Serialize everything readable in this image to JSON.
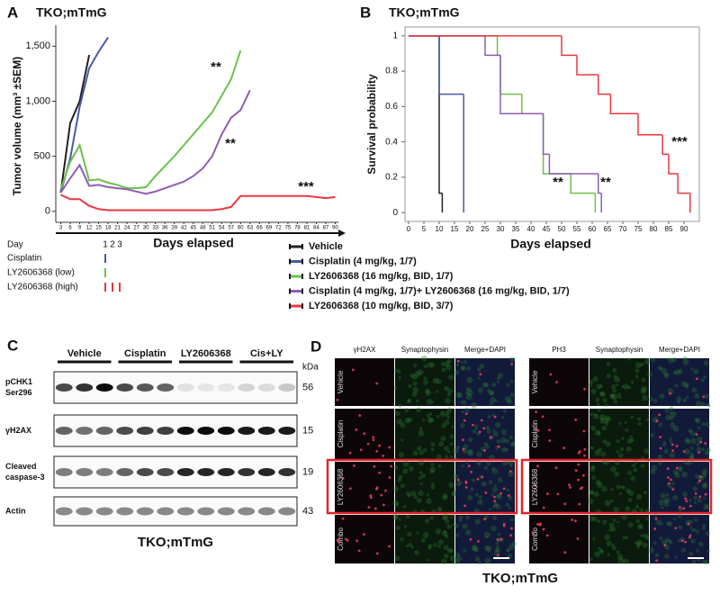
{
  "chart_data": [
    {
      "type": "line",
      "panel_label": "A",
      "title": "TKO;mTmG",
      "y_label": "Tumor volume (mm³ ±SEM)",
      "x_label": "Days elapsed",
      "xlim": [
        2,
        91
      ],
      "xticks": [
        3,
        6,
        9,
        12,
        15,
        18,
        21,
        24,
        27,
        30,
        33,
        36,
        39,
        42,
        45,
        48,
        51,
        54,
        57,
        60,
        63,
        66,
        69,
        72,
        75,
        78,
        81,
        84,
        87,
        90
      ],
      "ylim": [
        -100,
        1650
      ],
      "yticks": [
        0,
        500,
        {
          "value": 1000,
          "label": "1,000"
        },
        {
          "value": 1500,
          "label": "1,500"
        }
      ],
      "series": [
        {
          "name": "Vehicle",
          "color": "#222222",
          "x": [
            3,
            6,
            9,
            12
          ],
          "values": [
            170,
            800,
            1000,
            1420
          ]
        },
        {
          "name": "Cisplatin (4 mg/kg, 1/7)",
          "color": "#4a5aa8",
          "x": [
            3,
            6,
            9,
            12,
            15,
            18
          ],
          "values": [
            170,
            480,
            950,
            1300,
            1450,
            1580
          ]
        },
        {
          "name": "LY2606368 (16 mg/kg, BID, 1/7)",
          "color": "#6cc04a",
          "x": [
            3,
            6,
            9,
            12,
            15,
            18,
            21,
            24,
            27,
            30,
            33,
            36,
            39,
            42,
            45,
            48,
            51,
            54,
            57,
            60
          ],
          "values": [
            200,
            450,
            600,
            280,
            290,
            260,
            240,
            210,
            210,
            220,
            320,
            410,
            500,
            600,
            700,
            800,
            900,
            1050,
            1200,
            1460
          ]
        },
        {
          "name": "Cisplatin (4 mg/kg, 1/7)+ LY2606368 (16 mg/kg, BID, 1/7)",
          "color": "#8e5cb5",
          "x": [
            3,
            6,
            9,
            12,
            15,
            18,
            21,
            24,
            27,
            30,
            33,
            36,
            39,
            42,
            45,
            48,
            51,
            54,
            57,
            60,
            63
          ],
          "values": [
            170,
            300,
            420,
            230,
            240,
            220,
            210,
            200,
            180,
            160,
            180,
            210,
            240,
            270,
            320,
            390,
            500,
            700,
            850,
            920,
            1100
          ]
        },
        {
          "name": "LY2606368 (10 mg/kg, BID, 3/7)",
          "color": "#e8383d",
          "x": [
            3,
            6,
            9,
            12,
            15,
            18,
            21,
            24,
            27,
            30,
            33,
            36,
            39,
            42,
            45,
            48,
            51,
            54,
            57,
            60,
            63,
            66,
            69,
            72,
            75,
            78,
            81,
            84,
            87,
            90
          ],
          "values": [
            150,
            110,
            110,
            50,
            20,
            10,
            10,
            10,
            10,
            10,
            10,
            10,
            10,
            10,
            10,
            10,
            10,
            20,
            40,
            140,
            140,
            140,
            140,
            140,
            140,
            140,
            140,
            130,
            120,
            130
          ]
        }
      ],
      "annotations": [
        "**",
        "**",
        "***"
      ]
    },
    {
      "type": "step",
      "panel_label": "B",
      "title": "TKO;mTmG",
      "y_label": "Survival probability",
      "x_label": "Days elapsed",
      "xlim": [
        0,
        95
      ],
      "xticks": [
        0,
        5,
        10,
        15,
        20,
        25,
        30,
        35,
        40,
        45,
        50,
        55,
        60,
        65,
        70,
        75,
        80,
        85,
        90
      ],
      "ylim": [
        -0.05,
        1.05
      ],
      "yticks": [
        0,
        0.2,
        0.4,
        0.6,
        0.8,
        1
      ],
      "series": [
        {
          "name": "Vehicle",
          "color": "#222222",
          "x": [
            0,
            10,
            11
          ],
          "values": [
            1,
            0.11,
            0
          ]
        },
        {
          "name": "Cisplatin (4 mg/kg, 1/7)",
          "color": "#4a5aa8",
          "x": [
            0,
            10,
            18
          ],
          "values": [
            1,
            0.67,
            0
          ]
        },
        {
          "name": "LY2606368 (16 mg/kg, BID, 1/7)",
          "color": "#6cc04a",
          "x": [
            0,
            29,
            30,
            37,
            44,
            53,
            61
          ],
          "values": [
            1,
            0.89,
            0.67,
            0.56,
            0.22,
            0.11,
            0
          ]
        },
        {
          "name": "Cisplatin (4 mg/kg, 1/7)+ LY2606368 (16 mg/kg, BID, 1/7)",
          "color": "#8e5cb5",
          "x": [
            0,
            25,
            30,
            44,
            46,
            62,
            63
          ],
          "values": [
            1,
            0.89,
            0.56,
            0.33,
            0.22,
            0.11,
            0
          ]
        },
        {
          "name": "LY2606368 (10 mg/kg, BID, 3/7)",
          "color": "#e8383d",
          "x": [
            0,
            50,
            55,
            62,
            66,
            75,
            83,
            85,
            88,
            92
          ],
          "values": [
            1,
            0.89,
            0.78,
            0.67,
            0.56,
            0.44,
            0.33,
            0.22,
            0.11,
            0
          ]
        }
      ],
      "annotations": [
        "**",
        "**",
        "***"
      ]
    }
  ],
  "dosing_schedule": {
    "header": "Day",
    "days": [
      1,
      2,
      3
    ],
    "rows": [
      {
        "name": "Cisplatin",
        "color": "#4a5aa8",
        "days": [
          1
        ]
      },
      {
        "name": "LY2606368 (low)",
        "color": "#6cc04a",
        "days": [
          1
        ]
      },
      {
        "name": "LY2606368 (high)",
        "color": "#e8383d",
        "days": [
          1,
          2,
          3
        ]
      }
    ]
  },
  "western_blot": {
    "label": "C",
    "groups": [
      "Vehicle",
      "Cisplatin",
      "LY2606368",
      "Cis+LY"
    ],
    "unit": "kDa",
    "rows": [
      {
        "name": [
          "pCHK1",
          "Ser296"
        ],
        "kda": 56
      },
      {
        "name": [
          "γH2AX"
        ],
        "kda": 15
      },
      {
        "name": [
          "Cleaved",
          "caspase-3"
        ],
        "kda": 19
      },
      {
        "name": [
          "Actin"
        ],
        "kda": 43
      }
    ],
    "caption": "TKO;mTmG"
  },
  "immunofluorescence": {
    "label": "D",
    "panels": [
      {
        "columns": [
          "γH2AX",
          "Synaptophysin",
          "Merge+DAPI"
        ],
        "rows": [
          "Vehicle",
          "Cisplatin",
          "LY2606368",
          "Combo"
        ]
      },
      {
        "columns": [
          "PH3",
          "Synaptophysin",
          "Merge+DAPI"
        ],
        "rows": [
          "Vehicle",
          "Cisplatin",
          "LY2606368",
          "Combo"
        ]
      }
    ],
    "caption": "TKO;mTmG"
  }
}
